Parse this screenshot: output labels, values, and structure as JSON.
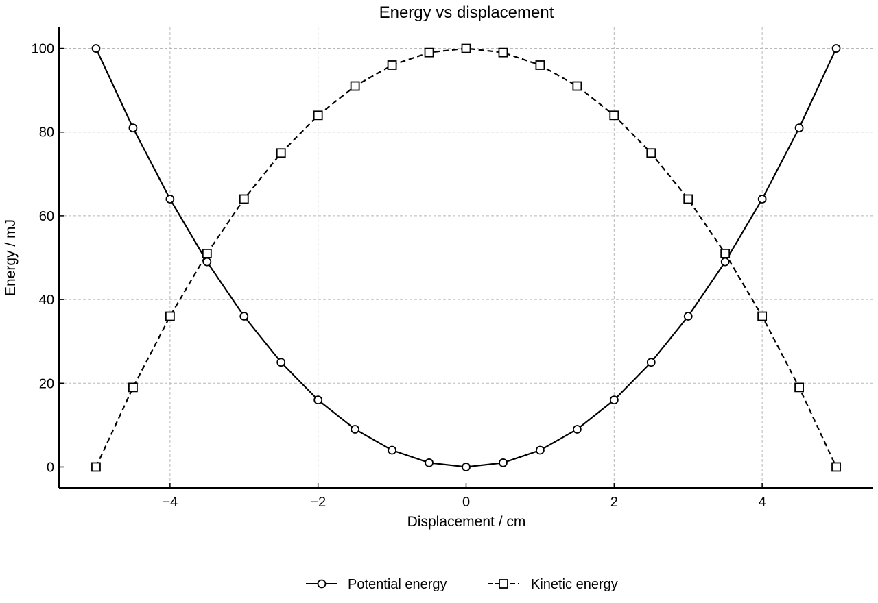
{
  "chart_data": {
    "type": "line",
    "title": "Energy vs displacement",
    "xlabel": "Displacement / cm",
    "ylabel": "Energy / mJ",
    "xlim": [
      -5.5,
      5.5
    ],
    "ylim": [
      -5,
      105
    ],
    "xticks": [
      -4,
      -2,
      0,
      2,
      4
    ],
    "xtick_labels": [
      "−4",
      "−2",
      "0",
      "2",
      "4"
    ],
    "yticks": [
      0,
      20,
      40,
      60,
      80,
      100
    ],
    "ytick_labels": [
      "0",
      "20",
      "40",
      "60",
      "80",
      "100"
    ],
    "grid": true,
    "legend_position": "bottom-center",
    "x": [
      -5,
      -4.5,
      -4,
      -3.5,
      -3,
      -2.5,
      -2,
      -1.5,
      -1,
      -0.5,
      0,
      0.5,
      1,
      1.5,
      2,
      2.5,
      3,
      3.5,
      4,
      4.5,
      5
    ],
    "series": [
      {
        "name": "Potential energy",
        "marker": "circle",
        "linestyle": "solid",
        "color": "#000000",
        "values": [
          100,
          81,
          64,
          49,
          36,
          25,
          16,
          9,
          4,
          1,
          0,
          1,
          4,
          9,
          16,
          25,
          36,
          49,
          64,
          81,
          100
        ]
      },
      {
        "name": "Kinetic energy",
        "marker": "square",
        "linestyle": "dashed",
        "color": "#000000",
        "values": [
          0,
          19,
          36,
          51,
          64,
          75,
          84,
          91,
          96,
          99,
          100,
          99,
          96,
          91,
          84,
          75,
          64,
          51,
          36,
          19,
          0
        ]
      }
    ]
  }
}
